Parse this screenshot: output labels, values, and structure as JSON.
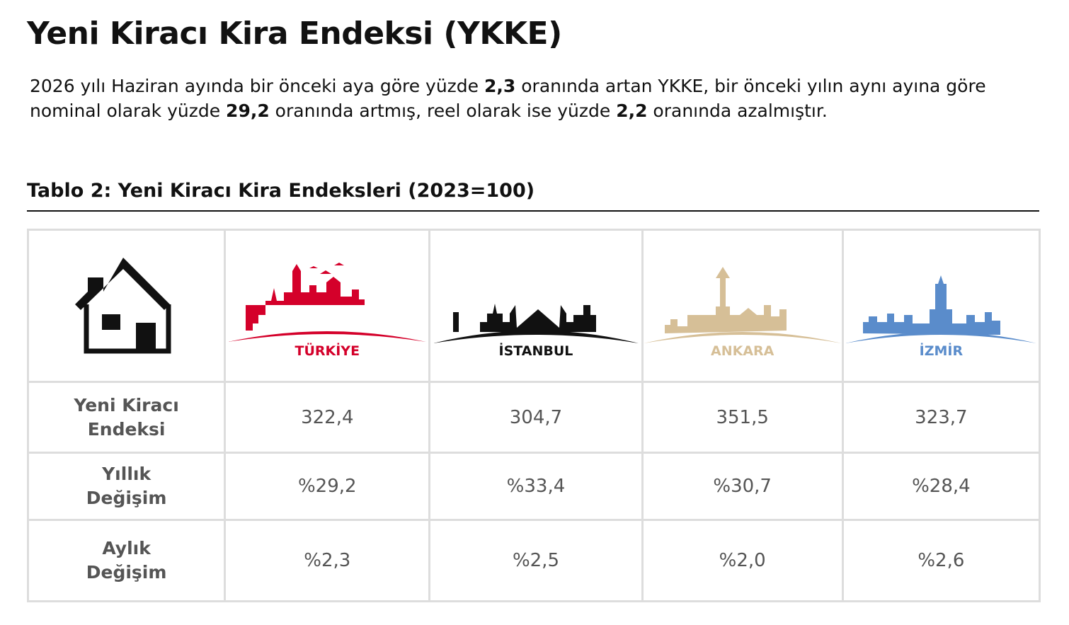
{
  "header": {
    "title": "Yeni Kiracı Kira Endeksi (YKKE)"
  },
  "summary": [
    "2026 yılı Haziran ayında bir önceki aya göre yüzde ",
    "2,3",
    " oranında artan YKKE, bir önceki yılın aynı ayına göre nominal olarak yüzde ",
    "29,2",
    " oranında artmış, reel olarak ise yüzde ",
    "2,2",
    " oranında azalmıştır."
  ],
  "table": {
    "caption": "Tablo 2: Yeni Kiracı Kira Endeksleri (2023=100)",
    "columns": [
      "TÜRKİYE",
      "İSTANBUL",
      "ANKARA",
      "İZMİR"
    ],
    "rows": [
      {
        "label": "Yeni Kiracı Endeksi",
        "cells": [
          "322,4",
          "304,7",
          "351,5",
          "323,7"
        ]
      },
      {
        "label": "Yıllık Değişim",
        "cells": [
          "%29,2",
          "%33,4",
          "%30,7",
          "%28,4"
        ]
      },
      {
        "label": "Aylık Değişim",
        "cells": [
          "%2,3",
          "%2,5",
          "%2,0",
          "%2,6"
        ]
      }
    ]
  }
}
